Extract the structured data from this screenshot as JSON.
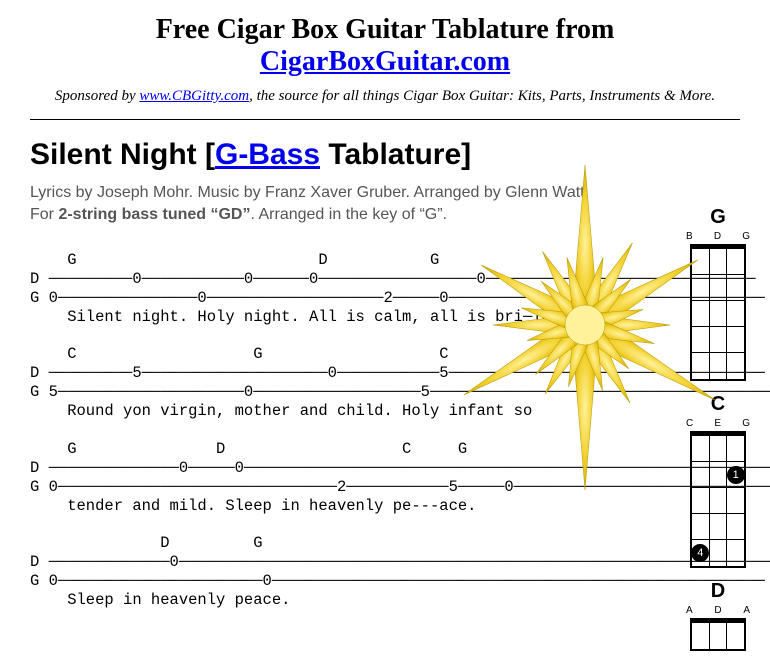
{
  "header": {
    "title_prefix": "Free Cigar Box Guitar Tablature from ",
    "title_link": "CigarBoxGuitar.com",
    "sponsor_prefix": "Sponsored by ",
    "sponsor_link": "www.CBGitty.com",
    "sponsor_suffix": ", the source for all things Cigar Box Guitar: Kits, Parts, Instruments & More."
  },
  "song": {
    "title_prefix": "Silent Night [",
    "title_link": "G-Bass",
    "title_suffix": " Tablature]",
    "credits_line1": "Lyrics by Joseph Mohr. Music by Franz Xaver Gruber. Arranged by Glenn Watt.",
    "credits_line2_prefix": "For ",
    "credits_line2_bold": "2-string bass tuned “GD”",
    "credits_line2_suffix": ". Arranged in the key of “G”."
  },
  "tablature": [
    "    G                          D           G",
    "D ─────────0───────────0──────0─────────────────0─────────────────────────────",
    "G 0───────────────0───────────────────2─────0──────────────────────────────────",
    "    Silent night. Holy night. All is calm, all is bri─ight.",
    "",
    "    C                   G                   C",
    "D ─────────5────────────────────0───────────5──────────────────────────────────",
    "G 5────────────────────0──────────────────5─────────────────────────────────────",
    "    Round yon virgin, mother and child. Holy infant so",
    "",
    "    G               D                   C     G",
    "D ──────────────0─────0─────────────────────────────────────────────────────────",
    "G 0──────────────────────────────2───────────5─────0────────────────────────────",
    "    tender and mild. Sleep in heavenly pe---ace.",
    "",
    "              D         G",
    "D ─────────────0────────────────────────────────────────────────────────────────",
    "G 0──────────────────────0─────────────────────────────────────────────────────",
    "    Sleep in heavenly peace."
  ],
  "chords": [
    {
      "name": "G",
      "labels": [
        "B",
        "D",
        "G"
      ],
      "rows": 5,
      "cols": 3,
      "dots": []
    },
    {
      "name": "C",
      "labels": [
        "C",
        "E",
        "G"
      ],
      "rows": 5,
      "cols": 3,
      "dots": [
        {
          "row": 1,
          "col": 2,
          "num": "1"
        },
        {
          "row": 4,
          "col": 0,
          "num": "4"
        }
      ]
    },
    {
      "name": "D",
      "labels": [
        "A",
        "D",
        "A"
      ],
      "rows": 1,
      "cols": 3,
      "dots": []
    }
  ],
  "colors": {
    "link": "#0000ee",
    "text": "#000000",
    "credits": "#555555",
    "star_fill": "#f2d02e",
    "star_highlight": "#fff29a",
    "star_shade": "#c9a800"
  }
}
